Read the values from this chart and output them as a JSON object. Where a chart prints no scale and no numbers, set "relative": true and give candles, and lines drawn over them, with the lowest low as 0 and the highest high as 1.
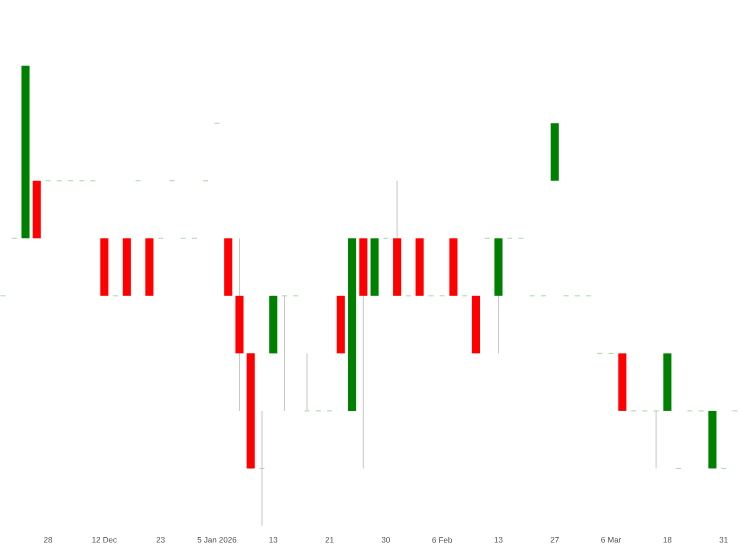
{
  "chart_data": {
    "type": "candlestick",
    "relative": true,
    "categories": [
      null,
      null,
      null,
      null,
      "28",
      null,
      null,
      null,
      null,
      "12 Dec",
      null,
      null,
      null,
      null,
      "23",
      null,
      null,
      null,
      null,
      "5 Jan 2026",
      null,
      null,
      null,
      null,
      "13",
      null,
      null,
      null,
      null,
      "21",
      null,
      null,
      null,
      null,
      "30",
      null,
      null,
      null,
      null,
      "6 Feb",
      null,
      null,
      null,
      null,
      "13",
      null,
      null,
      null,
      null,
      "27",
      null,
      null,
      null,
      null,
      "6 Mar",
      null,
      null,
      null,
      null,
      "18",
      null,
      null,
      null,
      null,
      "31",
      null
    ],
    "ohlc": [
      [
        0.5,
        0.5,
        0.5,
        0.5
      ],
      [
        0.625,
        0.625,
        0.625,
        0.625
      ],
      [
        0.625,
        1,
        0.625,
        1
      ],
      [
        0.75,
        0.75,
        0.625,
        0.625
      ],
      [
        0.75,
        0.75,
        0.75,
        0.75
      ],
      [
        0.75,
        0.75,
        0.75,
        0.75
      ],
      [
        0.75,
        0.75,
        0.75,
        0.75
      ],
      [
        0.75,
        0.75,
        0.75,
        0.75
      ],
      [
        0.75,
        0.75,
        0.75,
        0.75
      ],
      [
        0.625,
        0.625,
        0.5,
        0.5
      ],
      [
        0.5,
        0.5,
        0.5,
        0.5
      ],
      [
        0.625,
        0.625,
        0.5,
        0.5
      ],
      [
        0.75,
        0.75,
        0.75,
        0.75
      ],
      [
        0.625,
        0.625,
        0.5,
        0.5
      ],
      [
        0.625,
        0.625,
        0.625,
        0.625
      ],
      [
        0.75,
        0.75,
        0.75,
        0.75
      ],
      [
        0.625,
        0.625,
        0.625,
        0.625
      ],
      [
        0.625,
        0.625,
        0.625,
        0.625
      ],
      [
        0.75,
        0.75,
        0.75,
        0.75
      ],
      [
        0.875,
        0.875,
        0.875,
        0.875
      ],
      [
        0.625,
        0.625,
        0.5,
        0.5
      ],
      [
        0.5,
        0.625,
        0.25,
        0.375
      ],
      [
        0.375,
        0.375,
        0.125,
        0.125
      ],
      [
        0.125,
        0.25,
        0,
        0.125
      ],
      [
        0.375,
        0.5,
        0.375,
        0.5
      ],
      [
        0.5,
        0.5,
        0.25,
        0.5
      ],
      [
        0.5,
        0.5,
        0.5,
        0.5
      ],
      [
        0.25,
        0.375,
        0.25,
        0.25
      ],
      [
        0.25,
        0.25,
        0.25,
        0.25
      ],
      [
        0.25,
        0.25,
        0.25,
        0.25
      ],
      [
        0.5,
        0.5,
        0.375,
        0.375
      ],
      [
        0.25,
        0.625,
        0.25,
        0.625
      ],
      [
        0.625,
        0.625,
        0.125,
        0.5
      ],
      [
        0.5,
        0.625,
        0.5,
        0.625
      ],
      [
        0.625,
        0.625,
        0.625,
        0.625
      ],
      [
        0.625,
        0.75,
        0.5,
        0.5
      ],
      [
        0.5,
        0.5,
        0.5,
        0.5
      ],
      [
        0.625,
        0.625,
        0.5,
        0.5
      ],
      [
        0.5,
        0.5,
        0.5,
        0.5
      ],
      [
        0.5,
        0.5,
        0.5,
        0.5
      ],
      [
        0.625,
        0.625,
        0.5,
        0.5
      ],
      [
        0.5,
        0.5,
        0.5,
        0.5
      ],
      [
        0.5,
        0.5,
        0.375,
        0.375
      ],
      [
        0.625,
        0.625,
        0.625,
        0.625
      ],
      [
        0.5,
        0.625,
        0.375,
        0.625
      ],
      [
        0.625,
        0.625,
        0.625,
        0.625
      ],
      [
        0.625,
        0.625,
        0.625,
        0.625
      ],
      [
        0.5,
        0.5,
        0.5,
        0.5
      ],
      [
        0.5,
        0.5,
        0.5,
        0.5
      ],
      [
        0.75,
        0.875,
        0.75,
        0.875
      ],
      [
        0.5,
        0.5,
        0.5,
        0.5
      ],
      [
        0.5,
        0.5,
        0.5,
        0.5
      ],
      [
        0.5,
        0.5,
        0.5,
        0.5
      ],
      [
        0.375,
        0.375,
        0.375,
        0.375
      ],
      [
        0.375,
        0.375,
        0.375,
        0.375
      ],
      [
        0.375,
        0.375,
        0.25,
        0.25
      ],
      [
        0.25,
        0.25,
        0.25,
        0.25
      ],
      [
        0.25,
        0.25,
        0.25,
        0.25
      ],
      [
        0.25,
        0.25,
        0.125,
        0.25
      ],
      [
        0.25,
        0.375,
        0.25,
        0.375
      ],
      [
        0.125,
        0.125,
        0.125,
        0.125
      ],
      [
        0.25,
        0.25,
        0.25,
        0.25
      ],
      [
        0.25,
        0.25,
        0.25,
        0.25
      ],
      [
        0.125,
        0.25,
        0.125,
        0.25
      ],
      [
        0.125,
        0.125,
        0.125,
        0.125
      ],
      [
        0.25,
        0.25,
        0.25,
        0.25
      ]
    ],
    "colors": [
      "#a8d8a8",
      "#a8d8a8",
      "#008000",
      "#ff0000",
      "#a8d8a8",
      "#a8d8a8",
      "#a8d8a8",
      "#a8d8a8",
      "#a8d8a8",
      "#ff0000",
      "#a8d8a8",
      "#ff0000",
      "#a8d8a8",
      "#ff0000",
      "#a8d8a8",
      "#a8d8a8",
      "#a8d8a8",
      "#a8d8a8",
      "#a8d8a8",
      "#a8d8a8",
      "#ff0000",
      "#ff0000",
      "#ff0000",
      "#a8d8a8",
      "#008000",
      "#a8d8a8",
      "#a8d8a8",
      "#a8d8a8",
      "#a8d8a8",
      "#a8d8a8",
      "#ff0000",
      "#008000",
      "#ff0000",
      "#008000",
      "#a8d8a8",
      "#ff0000",
      "#a8d8a8",
      "#ff0000",
      "#a8d8a8",
      "#a8d8a8",
      "#ff0000",
      "#a8d8a8",
      "#ff0000",
      "#a8d8a8",
      "#008000",
      "#a8d8a8",
      "#a8d8a8",
      "#a8d8a8",
      "#a8d8a8",
      "#008000",
      "#a8d8a8",
      "#a8d8a8",
      "#a8d8a8",
      "#a8d8a8",
      "#a8d8a8",
      "#ff0000",
      "#a8d8a8",
      "#a8d8a8",
      "#a8d8a8",
      "#008000",
      "#a8d8a8",
      "#a8d8a8",
      "#a8d8a8",
      "#008000",
      "#a8d8a8",
      "#a8d8a8"
    ]
  }
}
